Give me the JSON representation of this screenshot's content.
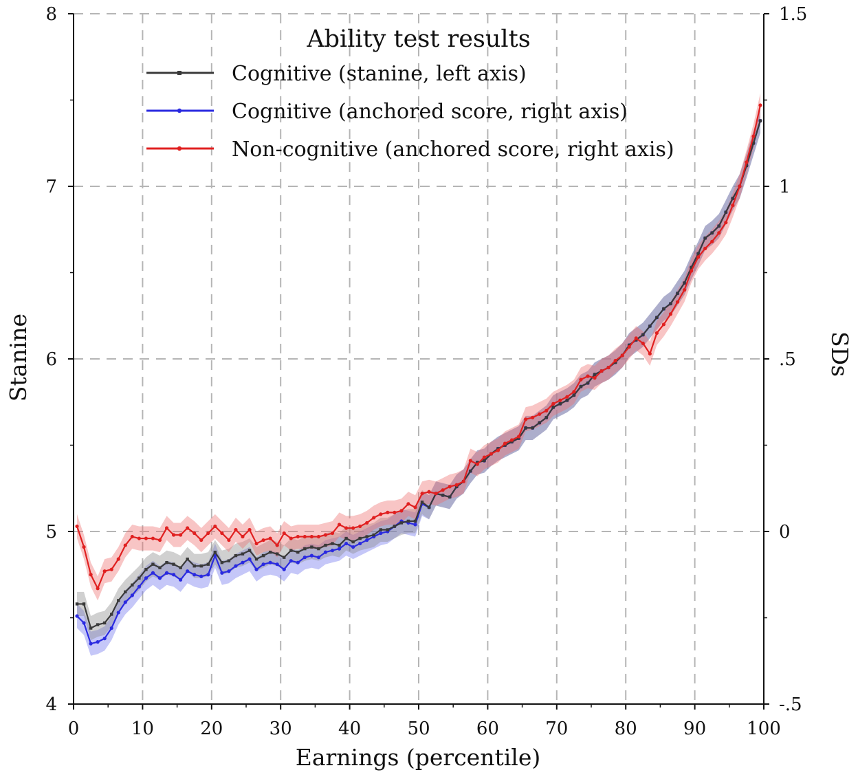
{
  "chart_data": {
    "type": "line",
    "title": "Ability test results",
    "xlabel": "Earnings (percentile)",
    "ylabel_left": "Stanine",
    "ylabel_right": "SDs",
    "xlim": [
      0,
      100
    ],
    "ylim_left": [
      4,
      8
    ],
    "ylim_right": [
      -0.5,
      1.5
    ],
    "x_ticks": [
      "0",
      "10",
      "20",
      "30",
      "40",
      "50",
      "60",
      "70",
      "80",
      "90",
      "100"
    ],
    "y_left_ticks": [
      "4",
      "5",
      "6",
      "7",
      "8"
    ],
    "y_right_ticks": [
      "-.5",
      "0",
      ".5",
      "1",
      "1.5"
    ],
    "grid": true,
    "legend_position": "top-left",
    "x": [
      0.5,
      1.5,
      2.5,
      3.5,
      4.5,
      5.5,
      6.5,
      7.5,
      8.5,
      9.5,
      10.5,
      11.5,
      12.5,
      13.5,
      14.5,
      15.5,
      16.5,
      17.5,
      18.5,
      19.5,
      20.5,
      21.5,
      22.5,
      23.5,
      24.5,
      25.5,
      26.5,
      27.5,
      28.5,
      29.5,
      30.5,
      31.5,
      32.5,
      33.5,
      34.5,
      35.5,
      36.5,
      37.5,
      38.5,
      39.5,
      40.5,
      41.5,
      42.5,
      43.5,
      44.5,
      45.5,
      46.5,
      47.5,
      48.5,
      49.5,
      50.5,
      51.5,
      52.5,
      53.5,
      54.5,
      55.5,
      56.5,
      57.5,
      58.5,
      59.5,
      60.5,
      61.5,
      62.5,
      63.5,
      64.5,
      65.5,
      66.5,
      67.5,
      68.5,
      69.5,
      70.5,
      71.5,
      72.5,
      73.5,
      74.5,
      75.5,
      76.5,
      77.5,
      78.5,
      79.5,
      80.5,
      81.5,
      82.5,
      83.5,
      84.5,
      85.5,
      86.5,
      87.5,
      88.5,
      89.5,
      90.5,
      91.5,
      92.5,
      93.5,
      94.5,
      95.5,
      96.5,
      97.5,
      98.5,
      99.5
    ],
    "series": [
      {
        "name": "Cognitive (stanine, left axis)",
        "axis": "left",
        "color": "#3a3a3a",
        "band_color": "#8a8a8a",
        "marker": "square",
        "values": [
          4.58,
          4.58,
          4.44,
          4.46,
          4.47,
          4.52,
          4.6,
          4.65,
          4.69,
          4.73,
          4.78,
          4.81,
          4.79,
          4.82,
          4.81,
          4.79,
          4.84,
          4.8,
          4.8,
          4.81,
          4.88,
          4.82,
          4.83,
          4.86,
          4.87,
          4.89,
          4.84,
          4.86,
          4.88,
          4.87,
          4.85,
          4.89,
          4.88,
          4.9,
          4.91,
          4.9,
          4.92,
          4.93,
          4.92,
          4.96,
          4.94,
          4.96,
          4.97,
          4.98,
          5.01,
          5.01,
          5.03,
          5.05,
          5.06,
          5.06,
          5.17,
          5.14,
          5.22,
          5.21,
          5.2,
          5.26,
          5.29,
          5.35,
          5.4,
          5.41,
          5.45,
          5.48,
          5.5,
          5.52,
          5.54,
          5.6,
          5.6,
          5.63,
          5.66,
          5.72,
          5.74,
          5.76,
          5.79,
          5.84,
          5.86,
          5.91,
          5.93,
          5.95,
          5.98,
          6.02,
          6.08,
          6.11,
          6.14,
          6.19,
          6.24,
          6.29,
          6.32,
          6.38,
          6.44,
          6.53,
          6.61,
          6.7,
          6.73,
          6.77,
          6.85,
          6.93,
          7.0,
          7.12,
          7.25,
          7.38
        ]
      },
      {
        "name": "Cognitive (anchored score, right axis)",
        "axis": "right",
        "color": "#2a2ae0",
        "band_color": "#6f72ee",
        "marker": "circle",
        "values": [
          -0.245,
          -0.265,
          -0.325,
          -0.32,
          -0.31,
          -0.28,
          -0.235,
          -0.205,
          -0.185,
          -0.16,
          -0.135,
          -0.12,
          -0.135,
          -0.12,
          -0.125,
          -0.14,
          -0.115,
          -0.125,
          -0.13,
          -0.125,
          -0.07,
          -0.12,
          -0.115,
          -0.1,
          -0.09,
          -0.08,
          -0.11,
          -0.095,
          -0.09,
          -0.095,
          -0.11,
          -0.085,
          -0.09,
          -0.075,
          -0.07,
          -0.075,
          -0.06,
          -0.055,
          -0.05,
          -0.035,
          -0.045,
          -0.035,
          -0.025,
          -0.015,
          -0.005,
          0.0,
          0.015,
          0.03,
          0.025,
          0.02,
          0.08,
          0.07,
          0.11,
          0.105,
          0.1,
          0.13,
          0.145,
          0.175,
          0.2,
          0.205,
          0.225,
          0.24,
          0.25,
          0.26,
          0.27,
          0.3,
          0.3,
          0.315,
          0.33,
          0.36,
          0.37,
          0.38,
          0.395,
          0.42,
          0.43,
          0.455,
          0.465,
          0.475,
          0.49,
          0.51,
          0.54,
          0.555,
          0.57,
          0.595,
          0.62,
          0.645,
          0.66,
          0.69,
          0.72,
          0.765,
          0.805,
          0.85,
          0.865,
          0.885,
          0.925,
          0.965,
          1.0,
          1.06,
          1.125,
          1.19
        ]
      },
      {
        "name": "Non-cognitive (anchored score, right axis)",
        "axis": "right",
        "color": "#e02020",
        "band_color": "#ee6e6e",
        "marker": "circle",
        "values": [
          0.015,
          -0.045,
          -0.125,
          -0.165,
          -0.115,
          -0.11,
          -0.08,
          -0.04,
          -0.015,
          -0.02,
          -0.02,
          -0.02,
          -0.025,
          0.01,
          -0.01,
          -0.01,
          0.01,
          -0.005,
          -0.025,
          -0.005,
          0.015,
          -0.005,
          -0.025,
          0.005,
          -0.015,
          0.005,
          -0.035,
          -0.025,
          -0.02,
          -0.04,
          -0.005,
          -0.02,
          -0.015,
          -0.015,
          -0.015,
          -0.015,
          -0.01,
          -0.005,
          0.02,
          0.01,
          0.01,
          0.015,
          0.025,
          0.04,
          0.05,
          0.055,
          0.055,
          0.06,
          0.08,
          0.07,
          0.11,
          0.115,
          0.11,
          0.12,
          0.13,
          0.135,
          0.145,
          0.205,
          0.195,
          0.215,
          0.225,
          0.235,
          0.255,
          0.265,
          0.275,
          0.325,
          0.33,
          0.34,
          0.35,
          0.37,
          0.38,
          0.39,
          0.405,
          0.44,
          0.45,
          0.445,
          0.465,
          0.475,
          0.495,
          0.51,
          0.535,
          0.56,
          0.545,
          0.515,
          0.575,
          0.6,
          0.63,
          0.665,
          0.7,
          0.755,
          0.795,
          0.82,
          0.84,
          0.865,
          0.895,
          0.945,
          1.0,
          1.07,
          1.145,
          1.235
        ]
      }
    ]
  }
}
